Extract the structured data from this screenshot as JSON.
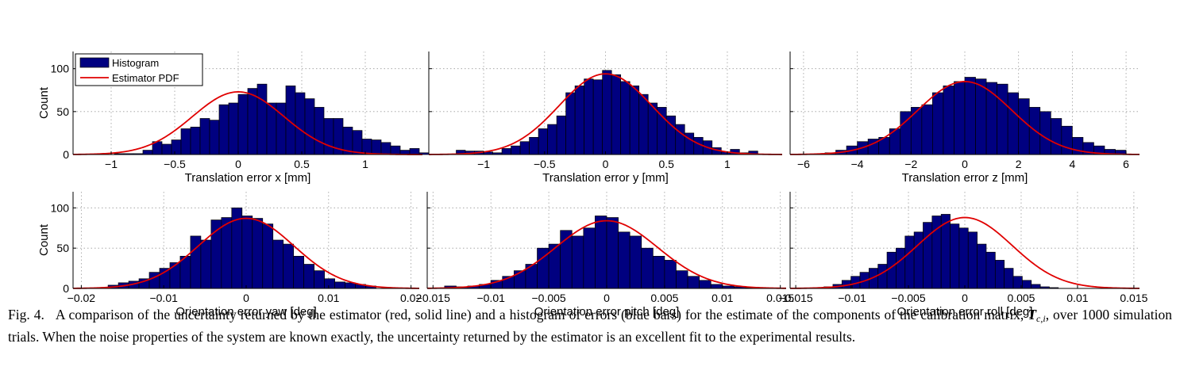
{
  "legend": {
    "histogram_label": "Histogram",
    "pdf_label": "Estimator PDF"
  },
  "colors": {
    "bar_fill": "#000080",
    "bar_stroke": "#000000",
    "pdf_line": "#e00000",
    "grid": "#9a9a9a"
  },
  "caption": {
    "label": "Fig. 4.",
    "text_before": "A comparison of the uncertainty returned by the estimator (red, solid line) and a histogram of errors (blue bars) for the estimate of the components of the calibration matrix,",
    "math_symbol": "T",
    "math_subscript": "c,i",
    "text_after": ", over 1000 simulation trials. When the noise properties of the system are known exactly, the uncertainty returned by the estimator is an excellent fit to the experimental results."
  },
  "chart_data": [
    {
      "type": "bar",
      "xlabel": "Translation error x [mm]",
      "ylabel": "Count",
      "xlim": [
        -1.3,
        1.45
      ],
      "ylim": [
        0,
        120
      ],
      "xticks": [
        -1,
        -0.5,
        0,
        0.5,
        1
      ],
      "xtick_labels": [
        "−1",
        "−0.5",
        "0",
        "0.5",
        "1"
      ],
      "yticks": [
        0,
        50,
        100
      ],
      "ytick_labels": [
        "0",
        "50",
        "100"
      ],
      "grid": true,
      "legend": "top-left",
      "bin_start": -0.975,
      "bin_width": 0.075,
      "values": [
        1,
        1,
        1,
        5,
        15,
        12,
        17,
        30,
        32,
        42,
        40,
        58,
        60,
        70,
        77,
        82,
        60,
        60,
        80,
        72,
        65,
        55,
        42,
        42,
        32,
        28,
        18,
        17,
        14,
        10,
        5,
        7,
        2
      ],
      "pdf": {
        "mean": 0.0,
        "sigma": 0.36,
        "peak": 73
      }
    },
    {
      "type": "bar",
      "xlabel": "Translation error y [mm]",
      "ylabel": "",
      "xlim": [
        -1.45,
        1.45
      ],
      "ylim": [
        0,
        120
      ],
      "xticks": [
        -1,
        -0.5,
        0,
        0.5,
        1
      ],
      "xtick_labels": [
        "−1",
        "−0.5",
        "0",
        "0.5",
        "1"
      ],
      "yticks": [
        0,
        50,
        100
      ],
      "ytick_labels": [
        "",
        "",
        ""
      ],
      "grid": true,
      "legend": "none",
      "bin_start": -1.225,
      "bin_width": 0.075,
      "values": [
        5,
        4,
        4,
        3,
        2,
        7,
        10,
        15,
        20,
        30,
        35,
        45,
        72,
        80,
        88,
        87,
        98,
        93,
        85,
        80,
        70,
        60,
        55,
        45,
        35,
        25,
        20,
        16,
        8,
        3,
        6,
        2,
        4
      ],
      "pdf": {
        "mean": 0.0,
        "sigma": 0.38,
        "peak": 94
      }
    },
    {
      "type": "bar",
      "xlabel": "Translation error z [mm]",
      "ylabel": "",
      "xlim": [
        -6.5,
        6.5
      ],
      "ylim": [
        0,
        120
      ],
      "xticks": [
        -6,
        -4,
        -2,
        0,
        2,
        4,
        6
      ],
      "xtick_labels": [
        "−6",
        "−4",
        "−2",
        "0",
        "2",
        "4",
        "6"
      ],
      "yticks": [
        0,
        50,
        100
      ],
      "ytick_labels": [
        "",
        "",
        ""
      ],
      "grid": true,
      "legend": "none",
      "bin_start": -5.2,
      "bin_width": 0.4,
      "values": [
        2,
        5,
        10,
        15,
        18,
        20,
        30,
        50,
        55,
        58,
        72,
        80,
        85,
        90,
        88,
        84,
        82,
        72,
        65,
        55,
        50,
        42,
        33,
        20,
        14,
        10,
        6,
        5
      ],
      "pdf": {
        "mean": 0.0,
        "sigma": 1.75,
        "peak": 85
      }
    },
    {
      "type": "bar",
      "xlabel": "Orientation error yaw [deg]",
      "ylabel": "Count",
      "xlim": [
        -0.021,
        0.021
      ],
      "ylim": [
        0,
        120
      ],
      "xticks": [
        -0.02,
        -0.01,
        0,
        0.01,
        0.02
      ],
      "xtick_labels": [
        "−0.02",
        "−0.01",
        "0",
        "0.01",
        "0.02"
      ],
      "yticks": [
        0,
        50,
        100
      ],
      "ytick_labels": [
        "0",
        "50",
        "100"
      ],
      "grid": true,
      "legend": "none",
      "bin_start": -0.018,
      "bin_width": 0.00125,
      "values": [
        1,
        4,
        7,
        9,
        12,
        20,
        25,
        32,
        40,
        65,
        60,
        85,
        88,
        100,
        90,
        87,
        80,
        60,
        55,
        40,
        30,
        22,
        12,
        8,
        7,
        5,
        3
      ],
      "pdf": {
        "mean": 0.0,
        "sigma": 0.0058,
        "peak": 87
      }
    },
    {
      "type": "bar",
      "xlabel": "Orientation error pitch [deg]",
      "ylabel": "",
      "xlim": [
        -0.0155,
        0.0155
      ],
      "ylim": [
        0,
        120
      ],
      "xticks": [
        -0.015,
        -0.01,
        -0.005,
        0,
        0.005,
        0.01,
        0.015
      ],
      "xtick_labels": [
        "−0.015",
        "−0.01",
        "−0.005",
        "0",
        "0.005",
        "0.01",
        "0.015"
      ],
      "yticks": [
        0,
        50,
        100
      ],
      "ytick_labels": [
        "",
        "",
        ""
      ],
      "grid": true,
      "legend": "none",
      "bin_start": -0.014,
      "bin_width": 0.001,
      "values": [
        3,
        2,
        3,
        5,
        10,
        15,
        22,
        30,
        50,
        55,
        72,
        65,
        75,
        90,
        88,
        70,
        65,
        50,
        40,
        35,
        22,
        15,
        10,
        5,
        3,
        2,
        1
      ],
      "pdf": {
        "mean": 0.0,
        "sigma": 0.0044,
        "peak": 84
      }
    },
    {
      "type": "bar",
      "xlabel": "Orientation error roll [deg]",
      "ylabel": "",
      "xlim": [
        -0.0155,
        0.0155
      ],
      "ylim": [
        0,
        120
      ],
      "xticks": [
        -0.015,
        -0.01,
        -0.005,
        0,
        0.005,
        0.01,
        0.015
      ],
      "xtick_labels": [
        "−0.015",
        "−0.01",
        "−0.005",
        "0",
        "0.005",
        "0.01",
        "0.015"
      ],
      "yticks": [
        0,
        50,
        100
      ],
      "ytick_labels": [
        "",
        "",
        ""
      ],
      "grid": true,
      "legend": "none",
      "bin_start": -0.0125,
      "bin_width": 0.0008,
      "values": [
        2,
        5,
        10,
        15,
        20,
        25,
        30,
        45,
        50,
        65,
        70,
        82,
        90,
        92,
        80,
        75,
        70,
        55,
        45,
        35,
        25,
        15,
        10,
        5,
        2,
        1
      ],
      "pdf": {
        "mean": 0.0,
        "sigma": 0.0042,
        "peak": 88
      }
    }
  ]
}
